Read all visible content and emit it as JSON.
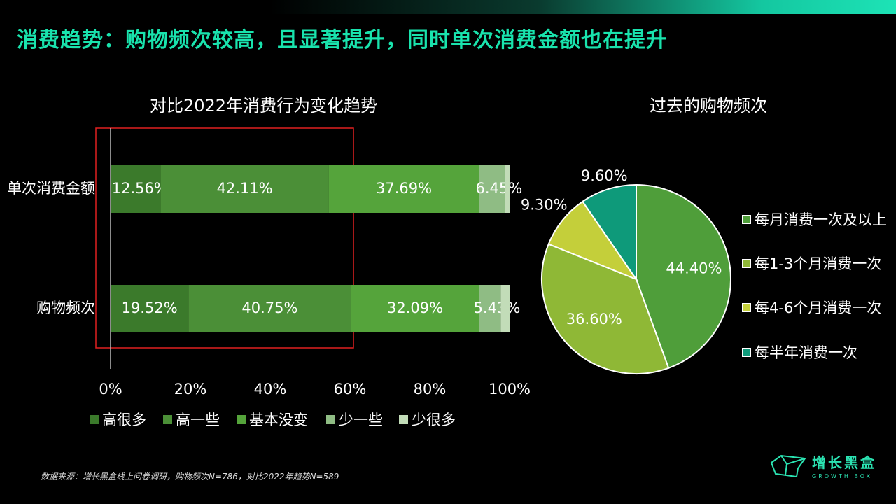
{
  "headline": "消费趋势：购物频次较高，且显著提升，同时单次消费金额也在提升",
  "source_note": "数据来源：增长黑盒线上问卷调研，购物频次N=786，对比2022年趋势N=589",
  "brand": {
    "name": "增长黑盒",
    "sub": "GROWTH BOX"
  },
  "chart_data": [
    {
      "type": "bar",
      "orientation": "horizontal",
      "stacked": true,
      "title": "对比2022年消费行为变化趋势",
      "categories": [
        "单次消费金额",
        "购物频次"
      ],
      "xlim": [
        0,
        100
      ],
      "x_ticks": [
        "0%",
        "20%",
        "40%",
        "60%",
        "80%",
        "100%"
      ],
      "legend_position": "bottom",
      "series": [
        {
          "name": "高很多",
          "color": "#3b7a2b",
          "values": [
            12.56,
            19.52
          ],
          "labels": [
            "12.56%",
            "19.52%"
          ]
        },
        {
          "name": "高一些",
          "color": "#4b8f37",
          "values": [
            42.11,
            40.75
          ],
          "labels": [
            "42.11%",
            "40.75%"
          ]
        },
        {
          "name": "基本没变",
          "color": "#55a43b",
          "values": [
            37.69,
            32.09
          ],
          "labels": [
            "37.69%",
            "32.09%"
          ]
        },
        {
          "name": "少一些",
          "color": "#8fbc84",
          "values": [
            6.45,
            5.43
          ],
          "labels": [
            "6.45%",
            "5.43%"
          ]
        },
        {
          "name": "少很多",
          "color": "#c2dcb8",
          "values": [
            1.19,
            2.21
          ],
          "labels": [
            "",
            ""
          ]
        }
      ],
      "highlight": {
        "from": 0,
        "to": 60,
        "color": "#e02020"
      }
    },
    {
      "type": "pie",
      "title": "过去的购物频次",
      "legend_position": "right",
      "slices": [
        {
          "name": "每月消费一次及以上",
          "value": 44.4,
          "label": "44.40%",
          "color": "#4f9e3a"
        },
        {
          "name": "每1-3个月消费一次",
          "value": 36.6,
          "label": "36.60%",
          "color": "#8fb836"
        },
        {
          "name": "每4-6个月消费一次",
          "value": 9.3,
          "label": "9.30%",
          "color": "#c4cf3a"
        },
        {
          "name": "每半年消费一次",
          "value": 9.6,
          "label": "9.60%",
          "color": "#0e9a7a"
        }
      ]
    }
  ]
}
